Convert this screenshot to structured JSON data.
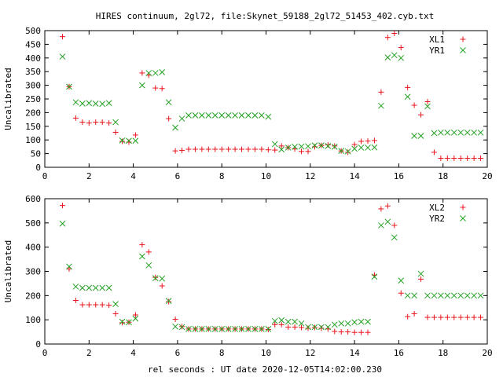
{
  "title": "HIRES continuum, 2gl72, file:Skynet_59188_2gl72_51453_402.cyb.txt",
  "xlabel": "rel seconds : UT date 2020-12-05T14:02:00.230",
  "colors": {
    "plus": "#e8141c",
    "cross": "#22a022",
    "axis": "#000000"
  },
  "chart_data": [
    {
      "type": "scatter",
      "ylabel": "Uncalibrated",
      "xlim": [
        0,
        20
      ],
      "ylim": [
        0,
        500
      ],
      "xticks": [
        0,
        2,
        4,
        6,
        8,
        10,
        12,
        14,
        16,
        18,
        20
      ],
      "yticks": [
        0,
        50,
        100,
        150,
        200,
        250,
        300,
        350,
        400,
        450,
        500
      ],
      "legend_position": "top-right",
      "series": [
        {
          "name": "XL1",
          "marker": "plus",
          "x": [
            0.8,
            1.1,
            1.4,
            1.7,
            2.0,
            2.3,
            2.6,
            2.9,
            3.2,
            3.5,
            3.8,
            4.1,
            4.4,
            4.7,
            5.0,
            5.3,
            5.6,
            5.9,
            6.2,
            6.5,
            6.8,
            7.1,
            7.4,
            7.7,
            8.0,
            8.3,
            8.6,
            8.9,
            9.2,
            9.5,
            9.8,
            10.1,
            10.4,
            10.7,
            11.0,
            11.3,
            11.6,
            11.9,
            12.2,
            12.5,
            12.8,
            13.1,
            13.4,
            13.7,
            14.0,
            14.3,
            14.6,
            14.9,
            15.2,
            15.5,
            15.8,
            16.1,
            16.4,
            16.7,
            17.0,
            17.3,
            17.6,
            17.9,
            18.2,
            18.5,
            18.8,
            19.1,
            19.4,
            19.7
          ],
          "y": [
            478,
            295,
            180,
            165,
            162,
            165,
            165,
            162,
            128,
            95,
            92,
            118,
            345,
            337,
            290,
            288,
            178,
            60,
            62,
            66,
            66,
            66,
            66,
            66,
            66,
            66,
            66,
            66,
            66,
            66,
            66,
            64,
            63,
            78,
            72,
            67,
            58,
            58,
            75,
            80,
            82,
            78,
            60,
            55,
            83,
            95,
            96,
            98,
            275,
            475,
            490,
            438,
            292,
            227,
            192,
            240,
            55,
            33,
            33,
            33,
            33,
            33,
            33,
            33
          ]
        },
        {
          "name": "YR1",
          "marker": "cross",
          "x": [
            0.8,
            1.1,
            1.4,
            1.7,
            2.0,
            2.3,
            2.6,
            2.9,
            3.2,
            3.5,
            3.8,
            4.1,
            4.4,
            4.7,
            5.0,
            5.3,
            5.6,
            5.9,
            6.2,
            6.5,
            6.8,
            7.1,
            7.4,
            7.7,
            8.0,
            8.3,
            8.6,
            8.9,
            9.2,
            9.5,
            9.8,
            10.1,
            10.4,
            10.7,
            11.0,
            11.3,
            11.6,
            11.9,
            12.2,
            12.5,
            12.8,
            13.1,
            13.4,
            13.7,
            14.0,
            14.3,
            14.6,
            14.9,
            15.2,
            15.5,
            15.8,
            16.1,
            16.4,
            16.7,
            17.0,
            17.3,
            17.6,
            17.9,
            18.2,
            18.5,
            18.8,
            19.1,
            19.4,
            19.7
          ],
          "y": [
            405,
            295,
            238,
            233,
            235,
            233,
            232,
            235,
            165,
            98,
            97,
            97,
            300,
            345,
            345,
            348,
            238,
            145,
            178,
            190,
            190,
            190,
            190,
            190,
            190,
            190,
            190,
            190,
            190,
            190,
            190,
            185,
            85,
            65,
            72,
            75,
            76,
            77,
            80,
            80,
            78,
            75,
            60,
            58,
            68,
            72,
            72,
            73,
            225,
            402,
            410,
            400,
            258,
            115,
            115,
            223,
            125,
            127,
            127,
            127,
            127,
            127,
            127,
            127
          ]
        }
      ]
    },
    {
      "type": "scatter",
      "ylabel": "Uncalibrated",
      "xlim": [
        0,
        20
      ],
      "ylim": [
        0,
        600
      ],
      "xticks": [
        0,
        2,
        4,
        6,
        8,
        10,
        12,
        14,
        16,
        18,
        20
      ],
      "yticks": [
        0,
        100,
        200,
        300,
        400,
        500,
        600
      ],
      "legend_position": "top-right",
      "series": [
        {
          "name": "XL2",
          "marker": "plus",
          "x": [
            0.8,
            1.1,
            1.4,
            1.7,
            2.0,
            2.3,
            2.6,
            2.9,
            3.2,
            3.5,
            3.8,
            4.1,
            4.4,
            4.7,
            5.0,
            5.3,
            5.6,
            5.9,
            6.2,
            6.5,
            6.8,
            7.1,
            7.4,
            7.7,
            8.0,
            8.3,
            8.6,
            8.9,
            9.2,
            9.5,
            9.8,
            10.1,
            10.4,
            10.7,
            11.0,
            11.3,
            11.6,
            11.9,
            12.2,
            12.5,
            12.8,
            13.1,
            13.4,
            13.7,
            14.0,
            14.3,
            14.6,
            14.9,
            15.2,
            15.5,
            15.8,
            16.1,
            16.4,
            16.7,
            17.0,
            17.3,
            17.6,
            17.9,
            18.2,
            18.5,
            18.8,
            19.1,
            19.4,
            19.7
          ],
          "y": [
            572,
            310,
            180,
            162,
            162,
            162,
            162,
            160,
            125,
            88,
            90,
            120,
            410,
            380,
            275,
            240,
            175,
            102,
            72,
            62,
            62,
            62,
            62,
            62,
            62,
            62,
            62,
            62,
            62,
            62,
            62,
            60,
            80,
            80,
            70,
            70,
            68,
            65,
            68,
            65,
            62,
            52,
            50,
            50,
            48,
            48,
            48,
            285,
            558,
            570,
            490,
            210,
            113,
            125,
            268,
            110,
            110,
            110,
            110,
            110,
            110,
            110,
            110,
            110
          ]
        },
        {
          "name": "YR2",
          "marker": "cross",
          "x": [
            0.8,
            1.1,
            1.4,
            1.7,
            2.0,
            2.3,
            2.6,
            2.9,
            3.2,
            3.5,
            3.8,
            4.1,
            4.4,
            4.7,
            5.0,
            5.3,
            5.6,
            5.9,
            6.2,
            6.5,
            6.8,
            7.1,
            7.4,
            7.7,
            8.0,
            8.3,
            8.6,
            8.9,
            9.2,
            9.5,
            9.8,
            10.1,
            10.4,
            10.7,
            11.0,
            11.3,
            11.6,
            11.9,
            12.2,
            12.5,
            12.8,
            13.1,
            13.4,
            13.7,
            14.0,
            14.3,
            14.6,
            14.9,
            15.2,
            15.5,
            15.8,
            16.1,
            16.4,
            16.7,
            17.0,
            17.3,
            17.6,
            17.9,
            18.2,
            18.5,
            18.8,
            19.1,
            19.4,
            19.7
          ],
          "y": [
            497,
            320,
            237,
            232,
            232,
            232,
            232,
            232,
            165,
            92,
            90,
            105,
            362,
            325,
            272,
            270,
            178,
            72,
            70,
            62,
            62,
            62,
            62,
            62,
            62,
            62,
            62,
            62,
            62,
            62,
            62,
            62,
            95,
            98,
            92,
            92,
            85,
            70,
            70,
            70,
            70,
            80,
            85,
            85,
            90,
            92,
            92,
            278,
            490,
            505,
            440,
            262,
            200,
            200,
            290,
            200,
            200,
            200,
            200,
            200,
            200,
            200,
            200,
            200
          ]
        }
      ]
    }
  ]
}
